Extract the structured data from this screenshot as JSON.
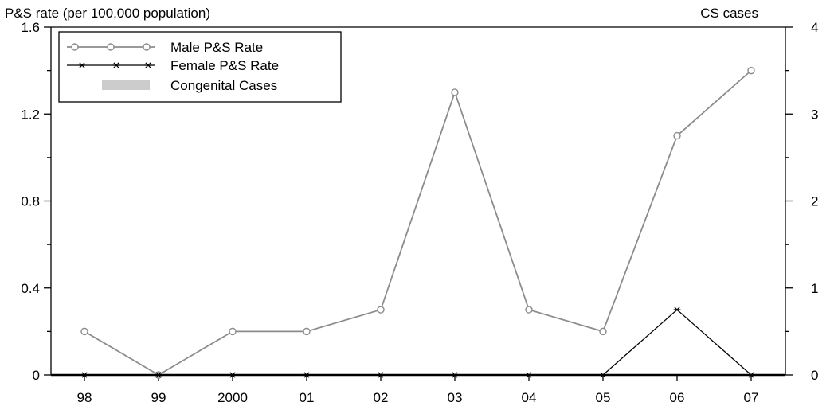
{
  "chart_data": {
    "type": "line",
    "y_axis_left": {
      "title": "P&S rate (per 100,000 population)",
      "range": [
        0,
        1.6
      ],
      "ticks": [
        {
          "value": 0,
          "label": "0"
        },
        {
          "value": 0.4,
          "label": "0.4"
        },
        {
          "value": 0.8,
          "label": "0.8"
        },
        {
          "value": 1.2,
          "label": "1.2"
        },
        {
          "value": 1.6,
          "label": "1.6"
        }
      ]
    },
    "y_axis_right": {
      "title": "CS cases",
      "range": [
        0,
        4
      ],
      "ticks": [
        {
          "value": 0,
          "label": "0"
        },
        {
          "value": 1,
          "label": "1"
        },
        {
          "value": 2,
          "label": "2"
        },
        {
          "value": 3,
          "label": "3"
        },
        {
          "value": 4,
          "label": "4"
        }
      ]
    },
    "categories": [
      "98",
      "99",
      "2000",
      "01",
      "02",
      "03",
      "04",
      "05",
      "06",
      "07"
    ],
    "series": [
      {
        "name": "Male P&S Rate",
        "axis": "left",
        "color": "#8c8c8c",
        "marker": "circle",
        "values": [
          0.2,
          0,
          0.2,
          0.2,
          0.3,
          1.3,
          0.3,
          0.2,
          1.1,
          1.4
        ]
      },
      {
        "name": "Female P&S Rate",
        "axis": "left",
        "color": "#000000",
        "marker": "star",
        "values": [
          0,
          0,
          0,
          0,
          0,
          0,
          0,
          0,
          0.3,
          0
        ]
      },
      {
        "name": "Congenital Cases",
        "axis": "right",
        "color": "#cccccc",
        "marker": "bar",
        "values": [
          0,
          0,
          0,
          0,
          0,
          0,
          0,
          0,
          0,
          0
        ]
      }
    ],
    "legend_position": "top-left",
    "grid": false
  }
}
